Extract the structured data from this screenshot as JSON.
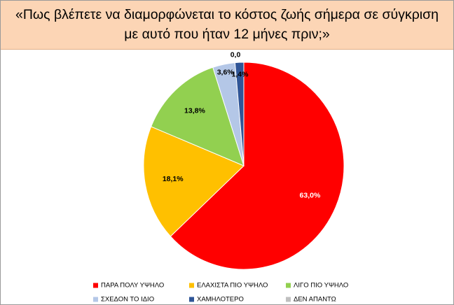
{
  "chart_data": {
    "type": "pie",
    "title": "«Πως βλέπετε να διαμορφώνεται το κόστος ζωής σήμερα σε σύγκριση με αυτό που ήταν 12 μήνες πριν;»",
    "categories": [
      "ΠΑΡΑ ΠΟΛΥ ΥΨΗΛΟ",
      "ΕΛΑΧΙΣΤΑ ΠΙΟ ΥΨΗΛΟ",
      "ΛΙΓΟ ΠΙΟ ΥΨΗΛΟ",
      "ΣΧΕΔΟΝ ΤΟ ΙΔΙΟ",
      "ΧΑΜΗΛΟΤΕΡΟ",
      "ΔΕΝ ΑΠΑΝΤΩ"
    ],
    "values": [
      63.0,
      18.1,
      13.8,
      3.6,
      1.4,
      0.0
    ],
    "value_labels": [
      "63,0%",
      "18,1%",
      "13,8%",
      "3,6%",
      "1,4%",
      "0,0"
    ],
    "colors": [
      "#ff0000",
      "#ffc000",
      "#92d050",
      "#b4c7e7",
      "#2f5597",
      "#bfbfbf"
    ]
  }
}
